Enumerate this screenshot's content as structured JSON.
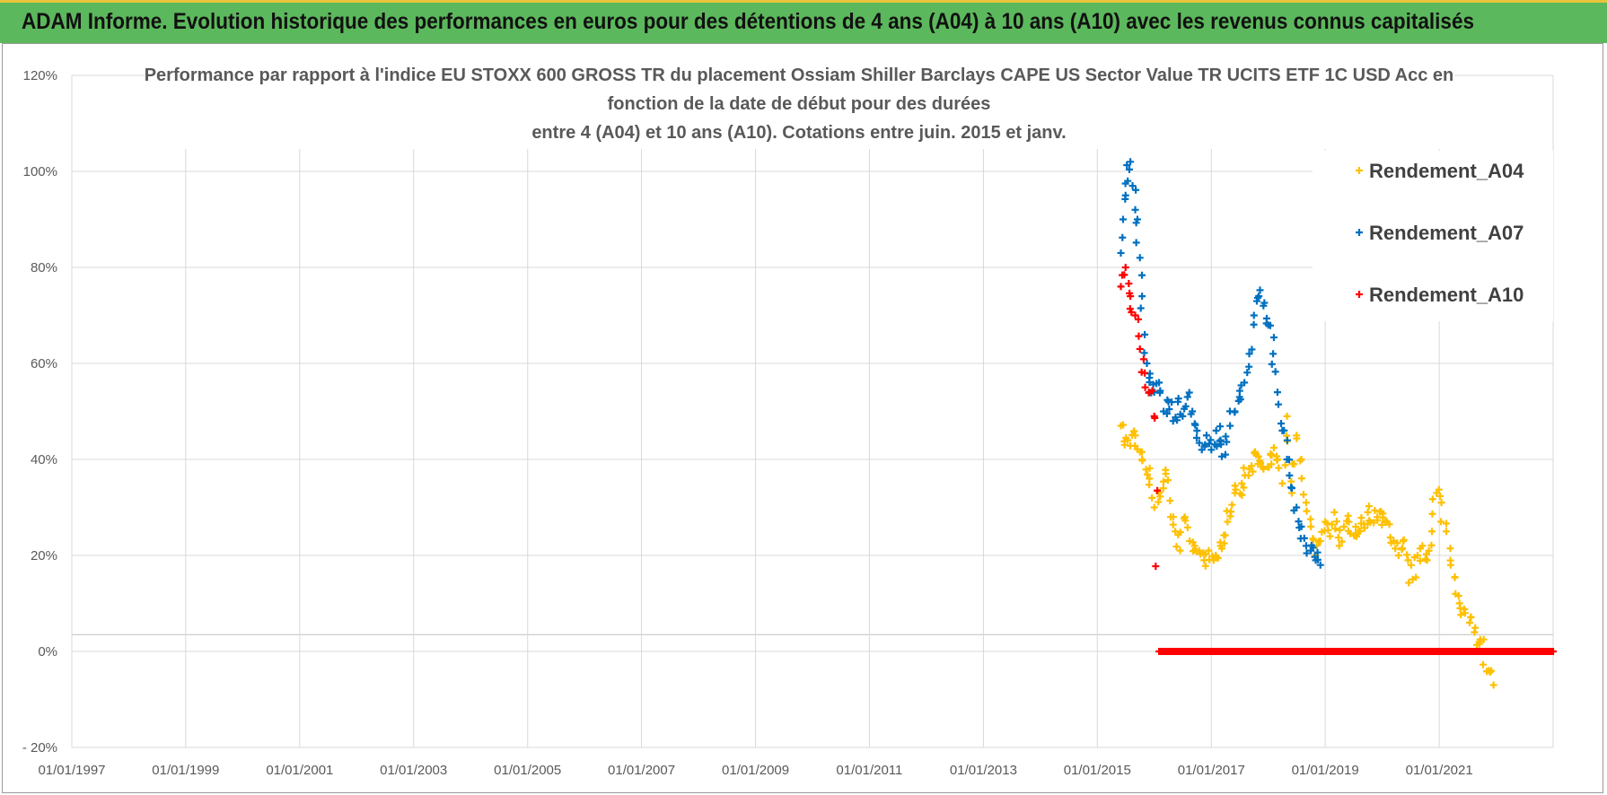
{
  "banner": {
    "title": "ADAM Informe. Evolution historique des performances en euros pour des détentions de 4 ans (A04) à 10 ans (A10) avec les revenus connus capitalisés"
  },
  "colors": {
    "banner": "#5cb85c",
    "A04": "#ffc000",
    "A07": "#0070c0",
    "A10": "#ff0000",
    "grid": "#d9d9d9"
  },
  "chart_data": {
    "type": "scatter",
    "title_lines": [
      "Performance par rapport à l'indice EU STOXX 600 GROSS TR  du placement Ossiam Shiller Barclays CAPE US Sector Value TR UCITS ETF 1C USD Acc en",
      "fonction de la date de début pour des durées",
      "entre 4 (A04) et 10 ans (A10).  Cotations entre juin. 2015 et janv."
    ],
    "x_axis": {
      "type": "date",
      "range": [
        "1997-01-01",
        "2023-01-01"
      ],
      "tick_labels": [
        "01/01/1997",
        "01/01/1999",
        "01/01/2001",
        "01/01/2003",
        "01/01/2005",
        "01/01/2007",
        "01/01/2009",
        "01/01/2011",
        "01/01/2013",
        "01/01/2015",
        "01/01/2017",
        "01/01/2019",
        "01/01/2021"
      ]
    },
    "y_axis": {
      "range": [
        -0.2,
        1.2
      ],
      "tick_labels": [
        "120%",
        "100%",
        "80%",
        "60%",
        "40%",
        "20%",
        "0%",
        "- 20%"
      ]
    },
    "grid": true,
    "legend_position": "top-right",
    "series": [
      {
        "name": "Rendement_A04",
        "marker": "+",
        "points": [
          [
            "2015-06-01",
            0.47
          ],
          [
            "2015-07-15",
            0.44
          ],
          [
            "2015-09-01",
            0.45
          ],
          [
            "2015-10-15",
            0.4
          ],
          [
            "2015-12-01",
            0.36
          ],
          [
            "2016-01-01",
            0.3
          ],
          [
            "2016-02-01",
            0.33
          ],
          [
            "2016-03-15",
            0.37
          ],
          [
            "2016-04-15",
            0.28
          ],
          [
            "2016-05-15",
            0.25
          ],
          [
            "2016-06-15",
            0.21
          ],
          [
            "2016-07-15",
            0.28
          ],
          [
            "2016-08-15",
            0.23
          ],
          [
            "2016-09-15",
            0.22
          ],
          [
            "2016-10-15",
            0.21
          ],
          [
            "2016-11-15",
            0.19
          ],
          [
            "2016-12-15",
            0.21
          ],
          [
            "2017-01-15",
            0.19
          ],
          [
            "2017-03-01",
            0.22
          ],
          [
            "2017-04-15",
            0.27
          ],
          [
            "2017-06-01",
            0.33
          ],
          [
            "2017-07-15",
            0.35
          ],
          [
            "2017-09-01",
            0.38
          ],
          [
            "2017-10-15",
            0.41
          ],
          [
            "2017-12-01",
            0.38
          ],
          [
            "2018-01-15",
            0.41
          ],
          [
            "2018-03-01",
            0.4
          ],
          [
            "2018-04-01",
            0.35
          ],
          [
            "2018-05-01",
            0.49
          ],
          [
            "2018-06-01",
            0.33
          ],
          [
            "2018-07-01",
            0.45
          ],
          [
            "2018-08-01",
            0.4
          ],
          [
            "2018-09-01",
            0.31
          ],
          [
            "2018-10-01",
            0.26
          ],
          [
            "2018-11-01",
            0.2
          ],
          [
            "2018-12-01",
            0.23
          ],
          [
            "2019-01-01",
            0.27
          ],
          [
            "2019-02-01",
            0.24
          ],
          [
            "2019-03-01",
            0.29
          ],
          [
            "2019-04-01",
            0.22
          ],
          [
            "2019-05-01",
            0.26
          ],
          [
            "2019-06-01",
            0.27
          ],
          [
            "2019-08-01",
            0.25
          ],
          [
            "2019-10-01",
            0.29
          ],
          [
            "2019-12-01",
            0.28
          ],
          [
            "2020-02-01",
            0.27
          ],
          [
            "2020-03-15",
            0.23
          ],
          [
            "2020-04-15",
            0.2
          ],
          [
            "2020-05-15",
            0.23
          ],
          [
            "2020-06-15",
            0.19
          ],
          [
            "2020-07-15",
            0.15
          ],
          [
            "2020-08-15",
            0.2
          ],
          [
            "2020-09-15",
            0.22
          ],
          [
            "2020-10-15",
            0.19
          ],
          [
            "2020-11-15",
            0.25
          ],
          [
            "2020-12-15",
            0.33
          ],
          [
            "2021-01-15",
            0.31
          ],
          [
            "2021-02-15",
            0.25
          ],
          [
            "2021-03-15",
            0.18
          ],
          [
            "2021-04-15",
            0.12
          ],
          [
            "2021-05-15",
            0.09
          ],
          [
            "2021-06-15",
            0.08
          ],
          [
            "2021-07-15",
            0.06
          ],
          [
            "2021-08-15",
            0.04
          ],
          [
            "2021-09-15",
            0.02
          ],
          [
            "2021-10-15",
            0.0
          ],
          [
            "2021-11-15",
            -0.04
          ],
          [
            "2021-12-15",
            -0.07
          ]
        ]
      },
      {
        "name": "Rendement_A07",
        "marker": "+",
        "points": [
          [
            "2015-06-01",
            0.83
          ],
          [
            "2015-06-15",
            0.9
          ],
          [
            "2015-07-01",
            0.95
          ],
          [
            "2015-07-15",
            0.98
          ],
          [
            "2015-08-01",
            1.02
          ],
          [
            "2015-08-15",
            0.97
          ],
          [
            "2015-09-01",
            0.92
          ],
          [
            "2015-09-15",
            0.9
          ],
          [
            "2015-10-01",
            0.82
          ],
          [
            "2015-10-15",
            0.74
          ],
          [
            "2015-11-01",
            0.66
          ],
          [
            "2015-11-15",
            0.6
          ],
          [
            "2015-12-01",
            0.57
          ],
          [
            "2016-01-01",
            0.54
          ],
          [
            "2016-02-01",
            0.56
          ],
          [
            "2016-03-01",
            0.5
          ],
          [
            "2016-04-01",
            0.52
          ],
          [
            "2016-05-01",
            0.48
          ],
          [
            "2016-06-01",
            0.52
          ],
          [
            "2016-07-01",
            0.49
          ],
          [
            "2016-08-01",
            0.53
          ],
          [
            "2016-09-01",
            0.5
          ],
          [
            "2016-10-01",
            0.46
          ],
          [
            "2016-11-01",
            0.42
          ],
          [
            "2016-12-01",
            0.45
          ],
          [
            "2017-01-01",
            0.42
          ],
          [
            "2017-02-01",
            0.46
          ],
          [
            "2017-03-01",
            0.44
          ],
          [
            "2017-04-01",
            0.41
          ],
          [
            "2017-05-01",
            0.47
          ],
          [
            "2017-06-01",
            0.5
          ],
          [
            "2017-07-01",
            0.53
          ],
          [
            "2017-08-01",
            0.56
          ],
          [
            "2017-09-01",
            0.62
          ],
          [
            "2017-10-01",
            0.7
          ],
          [
            "2017-11-01",
            0.74
          ],
          [
            "2017-12-01",
            0.72
          ],
          [
            "2018-01-01",
            0.68
          ],
          [
            "2018-02-01",
            0.62
          ],
          [
            "2018-03-01",
            0.54
          ],
          [
            "2018-04-01",
            0.46
          ],
          [
            "2018-05-01",
            0.4
          ],
          [
            "2018-06-01",
            0.34
          ],
          [
            "2018-07-01",
            0.3
          ],
          [
            "2018-08-01",
            0.26
          ],
          [
            "2018-09-01",
            0.22
          ],
          [
            "2018-10-01",
            0.21
          ],
          [
            "2018-11-01",
            0.19
          ],
          [
            "2018-12-01",
            0.18
          ]
        ]
      },
      {
        "name": "Rendement_A10",
        "marker": "+",
        "points": [
          [
            "2015-06-01",
            0.76
          ],
          [
            "2015-07-01",
            0.8
          ],
          [
            "2015-08-01",
            0.74
          ],
          [
            "2015-09-01",
            0.7
          ],
          [
            "2015-10-01",
            0.63
          ],
          [
            "2015-11-01",
            0.58
          ],
          [
            "2015-12-01",
            0.54
          ],
          [
            "2016-01-01",
            0.49
          ],
          [
            "2016-02-01",
            0.0
          ],
          [
            "2016-06-01",
            0.0
          ],
          [
            "2016-12-01",
            0.0
          ],
          [
            "2017-06-01",
            0.0
          ],
          [
            "2017-12-01",
            0.0
          ],
          [
            "2018-06-01",
            0.0
          ],
          [
            "2018-12-01",
            0.0
          ],
          [
            "2019-06-01",
            0.0
          ],
          [
            "2019-12-01",
            0.0
          ],
          [
            "2020-06-01",
            0.0
          ],
          [
            "2020-12-01",
            0.0
          ],
          [
            "2021-06-01",
            0.0
          ],
          [
            "2021-12-01",
            0.0
          ],
          [
            "2022-06-01",
            0.0
          ],
          [
            "2023-01-01",
            0.0
          ]
        ]
      }
    ]
  }
}
